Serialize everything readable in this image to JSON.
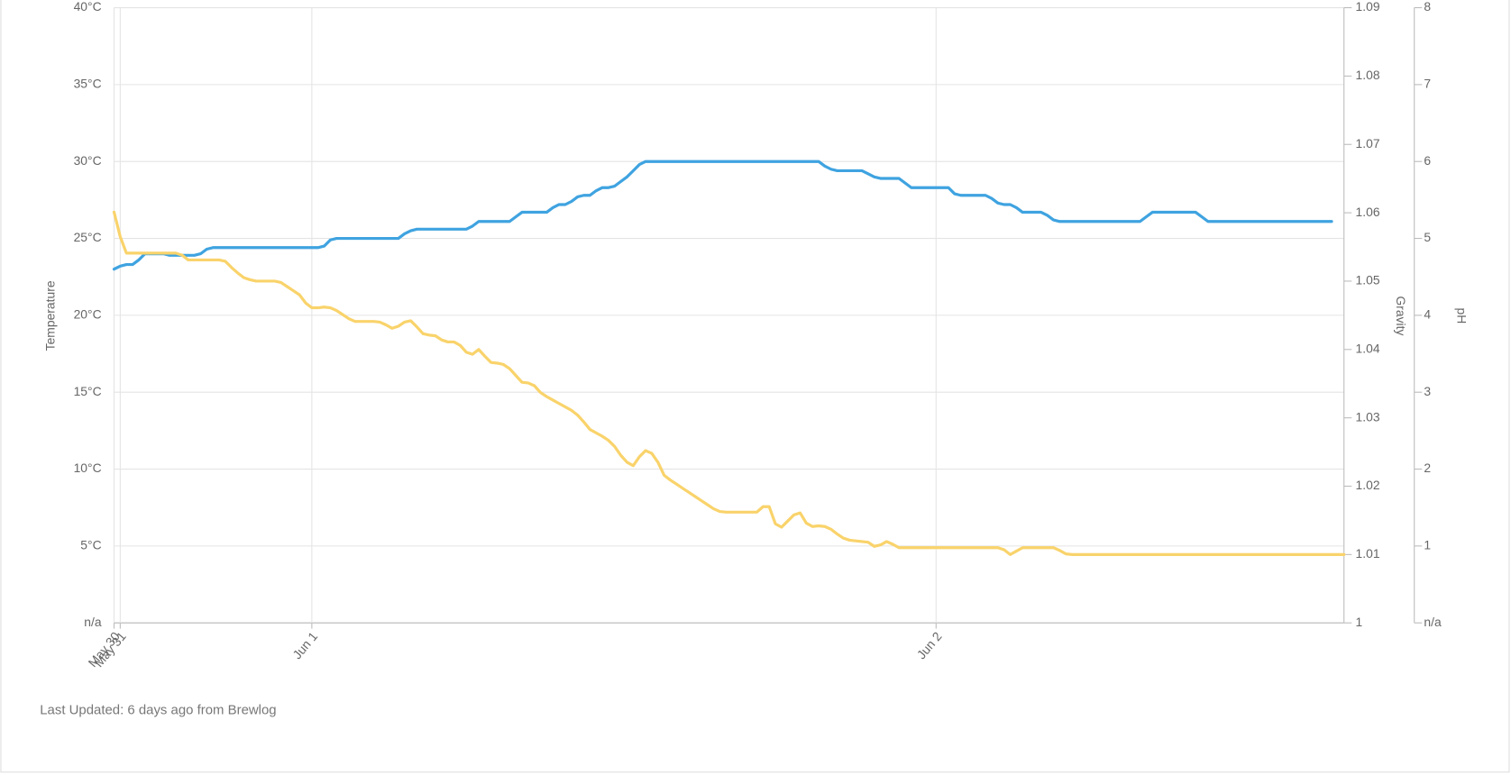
{
  "chart_data": {
    "type": "line",
    "y_label": "Temperature",
    "y2_label": "Gravity",
    "y3_label": "pH",
    "categories": [
      "May 30",
      "May 31",
      null,
      null,
      null,
      null,
      null,
      null,
      null,
      null,
      null,
      null,
      null,
      null,
      null,
      null,
      null,
      null,
      null,
      null,
      null,
      null,
      null,
      null,
      null,
      null,
      null,
      null,
      null,
      null,
      null,
      null,
      "Jun 1",
      null,
      null,
      null,
      null,
      null,
      null,
      null,
      null,
      null,
      null,
      null,
      null,
      null,
      null,
      null,
      null,
      null,
      null,
      null,
      null,
      null,
      null,
      null,
      null,
      null,
      null,
      null,
      null,
      null,
      null,
      null,
      null,
      null,
      null,
      null,
      null,
      null,
      null,
      null,
      null,
      null,
      null,
      null,
      null,
      null,
      null,
      null,
      null,
      null,
      null,
      null,
      null,
      null,
      null,
      null,
      null,
      null,
      null,
      null,
      null,
      null,
      null,
      null,
      null,
      null,
      null,
      null,
      null,
      null,
      null,
      null,
      null,
      null,
      null,
      null,
      null,
      null,
      null,
      null,
      null,
      null,
      null,
      null,
      null,
      null,
      null,
      null,
      null,
      null,
      null,
      null,
      null,
      null,
      null,
      null,
      null,
      null,
      null,
      null,
      null,
      "Jun 2",
      null,
      null,
      null,
      null,
      null,
      null,
      null,
      null,
      null,
      null,
      null,
      null,
      null,
      null,
      null,
      null,
      null,
      null,
      null,
      null,
      null,
      null,
      null,
      null,
      null,
      null,
      null,
      null,
      null,
      null,
      null,
      null,
      null,
      null,
      null,
      null,
      null,
      null,
      null,
      null,
      null,
      null,
      null,
      null,
      null,
      null,
      null,
      null,
      null,
      null,
      null,
      null,
      null,
      null,
      null,
      null,
      null,
      null,
      null,
      null,
      null,
      null,
      null,
      null,
      null,
      null
    ],
    "series": [
      {
        "color": "#3fa3e0",
        "values": [
          23.0,
          23.2,
          23.3,
          23.3,
          23.6,
          24.0,
          24.0,
          24.0,
          24.0,
          23.9,
          23.9,
          23.9,
          23.9,
          23.9,
          24.0,
          24.3,
          24.4,
          24.4,
          24.4,
          24.4,
          24.4,
          24.4,
          24.4,
          24.4,
          24.4,
          24.4,
          24.4,
          24.4,
          24.4,
          24.4,
          24.4,
          24.4,
          24.4,
          24.4,
          24.5,
          24.9,
          25.0,
          25.0,
          25.0,
          25.0,
          25.0,
          25.0,
          25.0,
          25.0,
          25.0,
          25.0,
          25.0,
          25.3,
          25.5,
          25.6,
          25.6,
          25.6,
          25.6,
          25.6,
          25.6,
          25.6,
          25.6,
          25.6,
          25.8,
          26.1,
          26.1,
          26.1,
          26.1,
          26.1,
          26.1,
          26.4,
          26.7,
          26.7,
          26.7,
          26.7,
          26.7,
          27.0,
          27.2,
          27.2,
          27.4,
          27.7,
          27.8,
          27.8,
          28.1,
          28.3,
          28.3,
          28.4,
          28.7,
          29.0,
          29.4,
          29.8,
          30.0,
          30.0,
          30.0,
          30.0,
          30.0,
          30.0,
          30.0,
          30.0,
          30.0,
          30.0,
          30.0,
          30.0,
          30.0,
          30.0,
          30.0,
          30.0,
          30.0,
          30.0,
          30.0,
          30.0,
          30.0,
          30.0,
          30.0,
          30.0,
          30.0,
          30.0,
          30.0,
          30.0,
          30.0,
          29.7,
          29.5,
          29.4,
          29.4,
          29.4,
          29.4,
          29.4,
          29.2,
          29.0,
          28.9,
          28.9,
          28.9,
          28.9,
          28.6,
          28.3,
          28.3,
          28.3,
          28.3,
          28.3,
          28.3,
          28.3,
          27.9,
          27.8,
          27.8,
          27.8,
          27.8,
          27.8,
          27.6,
          27.3,
          27.2,
          27.2,
          27.0,
          26.7,
          26.7,
          26.7,
          26.7,
          26.5,
          26.2,
          26.1,
          26.1,
          26.1,
          26.1,
          26.1,
          26.1,
          26.1,
          26.1,
          26.1,
          26.1,
          26.1,
          26.1,
          26.1,
          26.1,
          26.4,
          26.7,
          26.7,
          26.7,
          26.7,
          26.7,
          26.7,
          26.7,
          26.7,
          26.4,
          26.1,
          26.1,
          26.1,
          26.1,
          26.1,
          26.1,
          26.1,
          26.1,
          26.1,
          26.1,
          26.1,
          26.1,
          26.1,
          26.1,
          26.1,
          26.1,
          26.1,
          26.1,
          26.1,
          26.1,
          26.1,
          null,
          null
        ]
      },
      {
        "color": "#f9d36b",
        "axis": "y2",
        "values": [
          1.0601,
          1.0565,
          1.0541,
          1.0541,
          1.0541,
          1.0541,
          1.0541,
          1.0541,
          1.0541,
          1.0541,
          1.0541,
          1.0538,
          1.0531,
          1.0531,
          1.0531,
          1.0531,
          1.0531,
          1.0531,
          1.0529,
          1.052,
          1.0512,
          1.0505,
          1.0502,
          1.05,
          1.05,
          1.05,
          1.05,
          1.0498,
          1.0492,
          1.0486,
          1.048,
          1.0468,
          1.0461,
          1.0461,
          1.0462,
          1.0461,
          1.0457,
          1.0451,
          1.0445,
          1.0441,
          1.0441,
          1.0441,
          1.0441,
          1.044,
          1.0436,
          1.0431,
          1.0434,
          1.044,
          1.0442,
          1.0433,
          1.0423,
          1.0421,
          1.042,
          1.0414,
          1.0411,
          1.0411,
          1.0406,
          1.0396,
          1.0393,
          1.04,
          1.039,
          1.0381,
          1.038,
          1.0378,
          1.0372,
          1.0362,
          1.0352,
          1.0351,
          1.0347,
          1.0337,
          1.0331,
          1.0326,
          1.0321,
          1.0316,
          1.0311,
          1.0304,
          1.0294,
          1.0283,
          1.0278,
          1.0273,
          1.0267,
          1.0258,
          1.0245,
          1.0235,
          1.023,
          1.0243,
          1.0252,
          1.0248,
          1.0235,
          1.0216,
          1.0209,
          1.0203,
          1.0197,
          1.0191,
          1.0185,
          1.0179,
          1.0173,
          1.0167,
          1.0163,
          1.0162,
          1.0162,
          1.0162,
          1.0162,
          1.0162,
          1.0162,
          1.017,
          1.017,
          1.0145,
          1.014,
          1.0149,
          1.0158,
          1.0161,
          1.0146,
          1.0141,
          1.0142,
          1.0141,
          1.0137,
          1.013,
          1.0124,
          1.0121,
          1.012,
          1.0119,
          1.0118,
          1.0112,
          1.0114,
          1.0119,
          1.0115,
          1.011,
          1.011,
          1.011,
          1.011,
          1.011,
          1.011,
          1.011,
          1.011,
          1.011,
          1.011,
          1.011,
          1.011,
          1.011,
          1.011,
          1.011,
          1.011,
          1.011,
          1.0107,
          1.01,
          1.0105,
          1.011,
          1.011,
          1.011,
          1.011,
          1.011,
          1.011,
          1.0106,
          1.0101,
          1.01,
          1.01,
          1.01,
          1.01,
          1.01,
          1.01,
          1.01,
          1.01,
          1.01,
          1.01,
          1.01,
          1.01,
          1.01,
          1.01,
          1.01,
          1.01,
          1.01,
          1.01,
          1.01,
          1.01,
          1.01,
          1.01,
          1.01,
          1.01,
          1.01,
          1.01,
          1.01,
          1.01,
          1.01,
          1.01,
          1.01,
          1.01,
          1.01,
          1.01,
          1.01,
          1.01,
          1.01,
          1.01,
          1.01,
          1.01,
          1.01,
          1.01,
          1.01,
          1.01,
          1.01
        ]
      }
    ],
    "ylim": [
      0,
      40
    ],
    "yticks": [
      {
        "value": 0,
        "label": "n/a"
      },
      {
        "value": 5,
        "label": "5°C"
      },
      {
        "value": 10,
        "label": "10°C"
      },
      {
        "value": 15,
        "label": "15°C"
      },
      {
        "value": 20,
        "label": "20°C"
      },
      {
        "value": 25,
        "label": "25°C"
      },
      {
        "value": 30,
        "label": "30°C"
      },
      {
        "value": 35,
        "label": "35°C"
      },
      {
        "value": 40,
        "label": "40°C"
      }
    ],
    "y2lim": [
      1,
      1.09
    ],
    "y2ticks": [
      1,
      1.01,
      1.02,
      1.03,
      1.04,
      1.05,
      1.06,
      1.07,
      1.08,
      1.09
    ],
    "y3lim": [
      0,
      8
    ],
    "y3ticks": [
      {
        "value": 0,
        "label": "n/a"
      },
      1,
      2,
      3,
      4,
      5,
      6,
      7,
      8
    ],
    "grid": true
  },
  "footer": "Last Updated: 6 days ago from Brewlog"
}
